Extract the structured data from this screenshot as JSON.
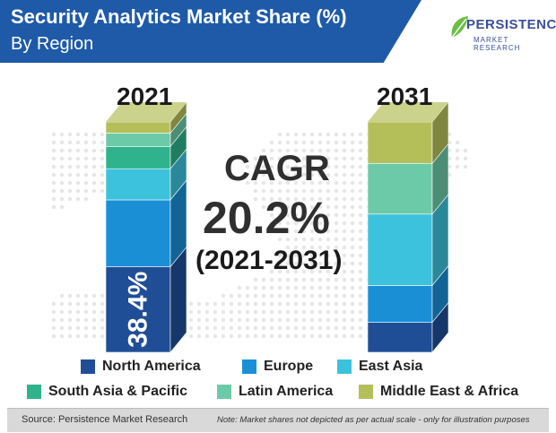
{
  "header": {
    "title": "Security Analytics Market Share (%)",
    "subtitle": "By Region"
  },
  "logo": {
    "word": "PERSISTENCE",
    "sub": "MARKET RESEARCH"
  },
  "cagr": {
    "label": "CAGR",
    "value": "20.2%",
    "period": "(2021-2031)"
  },
  "chart_data": {
    "type": "bar",
    "stacked": true,
    "categories": [
      "2021",
      "2031"
    ],
    "series": [
      {
        "name": "North America",
        "color": "#1f4e96",
        "values": [
          38.4,
          13
        ]
      },
      {
        "name": "Europe",
        "color": "#1a8fd6",
        "values": [
          30,
          16
        ]
      },
      {
        "name": "East Asia",
        "color": "#3cc2dc",
        "values": [
          14,
          31
        ]
      },
      {
        "name": "South Asia & Pacific",
        "color": "#2fb38c",
        "values": [
          10,
          0
        ]
      },
      {
        "name": "Latin America",
        "color": "#6ccaa8",
        "values": [
          6,
          22
        ]
      },
      {
        "name": "Middle East & Africa",
        "color": "#b5bf5a",
        "values": [
          5,
          18
        ]
      }
    ],
    "data_labels": [
      {
        "series": "North America",
        "category": "2021",
        "text": "38.4%"
      }
    ]
  },
  "footer": {
    "source": "Source: Persistence Market Research",
    "note": "Note: Market shares not depicted as per actual scale - only for illustration purposes"
  }
}
